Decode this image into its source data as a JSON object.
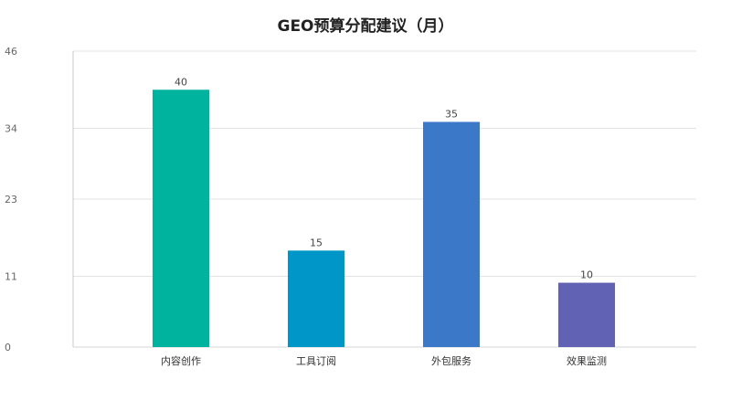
{
  "chart_data": {
    "type": "bar",
    "title": "GEO预算分配建议（月）",
    "categories": [
      "内容创作",
      "工具订阅",
      "外包服务",
      "效果监测"
    ],
    "values": [
      40,
      15,
      35,
      10
    ],
    "colors": [
      "#00b39f",
      "#0097c8",
      "#3b78c8",
      "#6262b4"
    ],
    "yticks": [
      0,
      11,
      23,
      34,
      46
    ],
    "ylim": [
      0,
      46
    ],
    "grid": true,
    "xlabel": "",
    "ylabel": ""
  }
}
